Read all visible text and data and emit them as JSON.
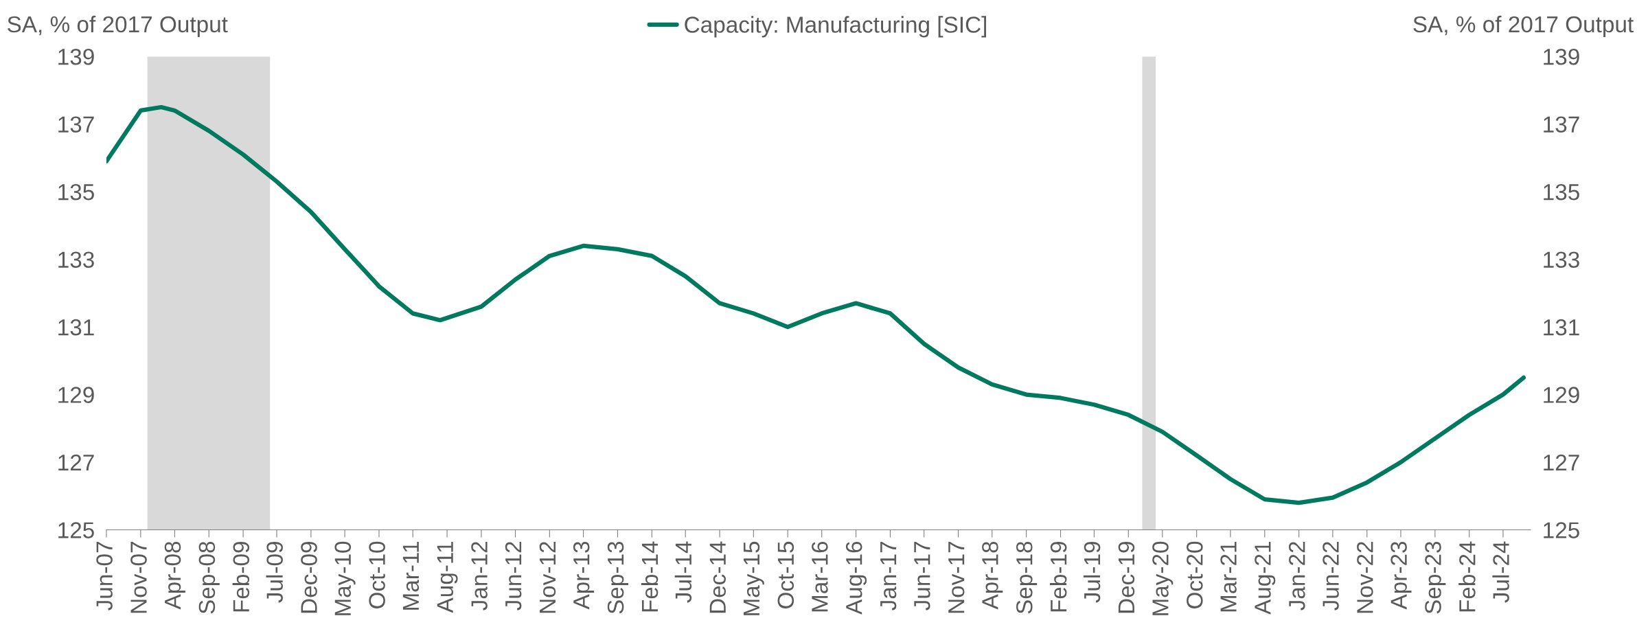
{
  "chart_data": {
    "type": "line",
    "ylabel": "SA, % of 2017 Output",
    "y2label": "SA, % of 2017 Output",
    "legend": "top",
    "grid": false,
    "marker": "none",
    "line_style": "solid",
    "x": [
      "2007-06",
      "2007-11",
      "2008-02",
      "2008-04",
      "2008-09",
      "2009-02",
      "2009-07",
      "2009-12",
      "2010-05",
      "2010-10",
      "2011-03",
      "2011-07",
      "2012-01",
      "2012-06",
      "2012-11",
      "2013-04",
      "2013-09",
      "2014-02",
      "2014-07",
      "2014-12",
      "2015-05",
      "2015-10",
      "2016-03",
      "2016-08",
      "2017-01",
      "2017-06",
      "2017-11",
      "2018-04",
      "2018-09",
      "2019-02",
      "2019-07",
      "2019-12",
      "2020-05",
      "2020-10",
      "2021-03",
      "2021-08",
      "2022-01",
      "2022-06",
      "2022-11",
      "2023-04",
      "2023-09",
      "2024-02",
      "2024-07",
      "2024-10"
    ],
    "series": [
      {
        "name": "Capacity: Manufacturing [SIC]",
        "color": "#007a5e",
        "values": [
          135.9,
          137.4,
          137.5,
          137.4,
          136.8,
          136.1,
          135.3,
          134.4,
          133.3,
          132.2,
          131.4,
          131.2,
          131.6,
          132.4,
          133.1,
          133.4,
          133.3,
          133.1,
          132.5,
          131.7,
          131.4,
          131.0,
          131.4,
          131.7,
          131.4,
          130.5,
          129.8,
          129.3,
          129.0,
          128.9,
          128.7,
          128.4,
          127.9,
          127.2,
          126.5,
          125.9,
          125.8,
          125.95,
          126.4,
          127.0,
          127.7,
          128.4,
          129.0,
          129.5
        ]
      }
    ],
    "bands": [
      {
        "axis": "x",
        "from": "2007-12",
        "to": "2009-06",
        "color": "#d9d9d9"
      },
      {
        "axis": "x",
        "from": "2020-02",
        "to": "2020-04",
        "color": "#d9d9d9"
      }
    ],
    "xlim": [
      "2007-06",
      "2024-11"
    ],
    "xticks": [
      {
        "value": "2007-06",
        "label": "Jun-07"
      },
      {
        "value": "2007-11",
        "label": "Nov-07"
      },
      {
        "value": "2008-04",
        "label": "Apr-08"
      },
      {
        "value": "2008-09",
        "label": "Sep-08"
      },
      {
        "value": "2009-02",
        "label": "Feb-09"
      },
      {
        "value": "2009-07",
        "label": "Jul-09"
      },
      {
        "value": "2009-12",
        "label": "Dec-09"
      },
      {
        "value": "2010-05",
        "label": "May-10"
      },
      {
        "value": "2010-10",
        "label": "Oct-10"
      },
      {
        "value": "2011-03",
        "label": "Mar-11"
      },
      {
        "value": "2011-08",
        "label": "Aug-11"
      },
      {
        "value": "2012-01",
        "label": "Jan-12"
      },
      {
        "value": "2012-06",
        "label": "Jun-12"
      },
      {
        "value": "2012-11",
        "label": "Nov-12"
      },
      {
        "value": "2013-04",
        "label": "Apr-13"
      },
      {
        "value": "2013-09",
        "label": "Sep-13"
      },
      {
        "value": "2014-02",
        "label": "Feb-14"
      },
      {
        "value": "2014-07",
        "label": "Jul-14"
      },
      {
        "value": "2014-12",
        "label": "Dec-14"
      },
      {
        "value": "2015-05",
        "label": "May-15"
      },
      {
        "value": "2015-10",
        "label": "Oct-15"
      },
      {
        "value": "2016-03",
        "label": "Mar-16"
      },
      {
        "value": "2016-08",
        "label": "Aug-16"
      },
      {
        "value": "2017-01",
        "label": "Jan-17"
      },
      {
        "value": "2017-06",
        "label": "Jun-17"
      },
      {
        "value": "2017-11",
        "label": "Nov-17"
      },
      {
        "value": "2018-04",
        "label": "Apr-18"
      },
      {
        "value": "2018-09",
        "label": "Sep-18"
      },
      {
        "value": "2019-02",
        "label": "Feb-19"
      },
      {
        "value": "2019-07",
        "label": "Jul-19"
      },
      {
        "value": "2019-12",
        "label": "Dec-19"
      },
      {
        "value": "2020-05",
        "label": "May-20"
      },
      {
        "value": "2020-10",
        "label": "Oct-20"
      },
      {
        "value": "2021-03",
        "label": "Mar-21"
      },
      {
        "value": "2021-08",
        "label": "Aug-21"
      },
      {
        "value": "2022-01",
        "label": "Jan-22"
      },
      {
        "value": "2022-06",
        "label": "Jun-22"
      },
      {
        "value": "2022-11",
        "label": "Nov-22"
      },
      {
        "value": "2023-04",
        "label": "Apr-23"
      },
      {
        "value": "2023-09",
        "label": "Sep-23"
      },
      {
        "value": "2024-02",
        "label": "Feb-24"
      },
      {
        "value": "2024-07",
        "label": "Jul-24"
      }
    ],
    "ylim": [
      125,
      139
    ],
    "yticks": [
      125,
      127,
      129,
      131,
      133,
      135,
      137,
      139
    ],
    "y2lim": [
      125,
      139
    ],
    "y2ticks": [
      125,
      127,
      129,
      131,
      133,
      135,
      137,
      139
    ]
  }
}
